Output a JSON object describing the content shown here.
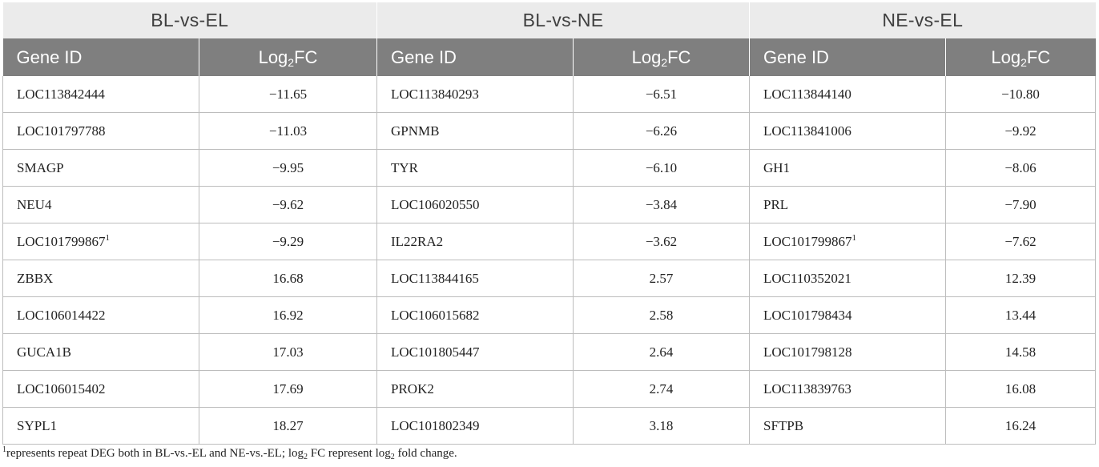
{
  "groups": [
    "BL-vs-EL",
    "BL-vs-NE",
    "NE-vs-EL"
  ],
  "sub_headers": {
    "gene_id": "Gene ID",
    "log_prefix": "Log",
    "log_subscript": "2",
    "log_suffix": "FC"
  },
  "rows": [
    {
      "bl_el_gene": "LOC113842444",
      "bl_el_mark": "",
      "bl_el_fc": "−11.65",
      "bl_ne_gene": "LOC113840293",
      "bl_ne_fc": "−6.51",
      "ne_el_gene": "LOC113844140",
      "ne_el_mark": "",
      "ne_el_fc": "−10.80"
    },
    {
      "bl_el_gene": "LOC101797788",
      "bl_el_mark": "",
      "bl_el_fc": "−11.03",
      "bl_ne_gene": "GPNMB",
      "bl_ne_fc": "−6.26",
      "ne_el_gene": "LOC113841006",
      "ne_el_mark": "",
      "ne_el_fc": "−9.92"
    },
    {
      "bl_el_gene": "SMAGP",
      "bl_el_mark": "",
      "bl_el_fc": "−9.95",
      "bl_ne_gene": "TYR",
      "bl_ne_fc": "−6.10",
      "ne_el_gene": "GH1",
      "ne_el_mark": "",
      "ne_el_fc": "−8.06"
    },
    {
      "bl_el_gene": "NEU4",
      "bl_el_mark": "",
      "bl_el_fc": "−9.62",
      "bl_ne_gene": "LOC106020550",
      "bl_ne_fc": "−3.84",
      "ne_el_gene": "PRL",
      "ne_el_mark": "",
      "ne_el_fc": "−7.90"
    },
    {
      "bl_el_gene": "LOC101799867",
      "bl_el_mark": "1",
      "bl_el_fc": "−9.29",
      "bl_ne_gene": "IL22RA2",
      "bl_ne_fc": "−3.62",
      "ne_el_gene": "LOC101799867",
      "ne_el_mark": "1",
      "ne_el_fc": "−7.62"
    },
    {
      "bl_el_gene": "ZBBX",
      "bl_el_mark": "",
      "bl_el_fc": "16.68",
      "bl_ne_gene": "LOC113844165",
      "bl_ne_fc": "2.57",
      "ne_el_gene": "LOC110352021",
      "ne_el_mark": "",
      "ne_el_fc": "12.39"
    },
    {
      "bl_el_gene": "LOC106014422",
      "bl_el_mark": "",
      "bl_el_fc": "16.92",
      "bl_ne_gene": "LOC106015682",
      "bl_ne_fc": "2.58",
      "ne_el_gene": "LOC101798434",
      "ne_el_mark": "",
      "ne_el_fc": "13.44"
    },
    {
      "bl_el_gene": "GUCA1B",
      "bl_el_mark": "",
      "bl_el_fc": "17.03",
      "bl_ne_gene": "LOC101805447",
      "bl_ne_fc": "2.64",
      "ne_el_gene": "LOC101798128",
      "ne_el_mark": "",
      "ne_el_fc": "14.58"
    },
    {
      "bl_el_gene": "LOC106015402",
      "bl_el_mark": "",
      "bl_el_fc": "17.69",
      "bl_ne_gene": "PROK2",
      "bl_ne_fc": "2.74",
      "ne_el_gene": "LOC113839763",
      "ne_el_mark": "",
      "ne_el_fc": "16.08"
    },
    {
      "bl_el_gene": "SYPL1",
      "bl_el_mark": "",
      "bl_el_fc": "18.27",
      "bl_ne_gene": "LOC101802349",
      "bl_ne_fc": "3.18",
      "ne_el_gene": "SFTPB",
      "ne_el_mark": "",
      "ne_el_fc": "16.24"
    }
  ],
  "footnote": {
    "marker": "1",
    "text_a": "represents repeat DEG both in BL-vs.-EL and NE-vs.-EL; log",
    "sub_a": "2",
    "text_b": " FC represent log",
    "sub_b": "2",
    "text_c": " fold change."
  }
}
